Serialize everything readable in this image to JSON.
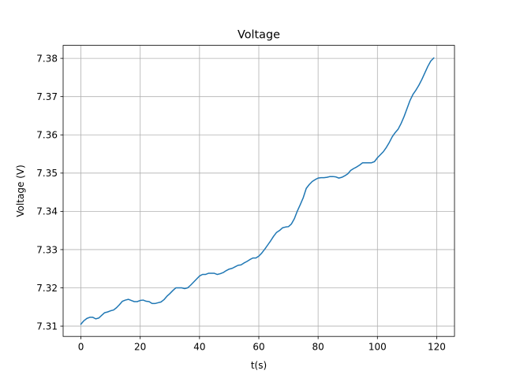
{
  "chart_data": {
    "type": "line",
    "title": "Voltage",
    "xlabel": "t(s)",
    "ylabel": "Voltage (V)",
    "xlim": [
      -6,
      126
    ],
    "ylim": [
      7.3073,
      7.3834
    ],
    "grid": true,
    "xticks": [
      0,
      20,
      40,
      60,
      80,
      100,
      120
    ],
    "yticks": [
      7.31,
      7.32,
      7.33,
      7.34,
      7.35,
      7.36,
      7.37,
      7.38
    ],
    "xtick_labels": [
      "0",
      "20",
      "40",
      "60",
      "80",
      "100",
      "120"
    ],
    "ytick_labels": [
      "7.31",
      "7.32",
      "7.33",
      "7.34",
      "7.35",
      "7.36",
      "7.37",
      "7.38"
    ],
    "series": [
      {
        "color": "#1f77b4",
        "x": [
          0,
          1,
          2,
          3,
          4,
          5,
          6,
          7,
          8,
          9,
          10,
          11,
          12,
          13,
          14,
          15,
          16,
          17,
          18,
          19,
          20,
          21,
          22,
          23,
          24,
          25,
          26,
          27,
          28,
          29,
          30,
          31,
          32,
          33,
          34,
          35,
          36,
          37,
          38,
          39,
          40,
          41,
          42,
          43,
          44,
          45,
          46,
          47,
          48,
          49,
          50,
          51,
          52,
          53,
          54,
          55,
          56,
          57,
          58,
          59,
          60,
          61,
          62,
          63,
          64,
          65,
          66,
          67,
          68,
          69,
          70,
          71,
          72,
          73,
          74,
          75,
          76,
          77,
          78,
          79,
          80,
          81,
          82,
          83,
          84,
          85,
          86,
          87,
          88,
          89,
          90,
          91,
          92,
          93,
          94,
          95,
          96,
          97,
          98,
          99,
          100,
          101,
          102,
          103,
          104,
          105,
          106,
          107,
          108,
          109,
          110,
          111,
          112,
          113,
          114,
          115,
          116,
          117,
          118,
          119
        ],
        "y": [
          7.3105,
          7.3114,
          7.312,
          7.3123,
          7.3123,
          7.3119,
          7.3121,
          7.3128,
          7.3135,
          7.3137,
          7.314,
          7.3142,
          7.3148,
          7.3156,
          7.3165,
          7.3168,
          7.317,
          7.3167,
          7.3164,
          7.3164,
          7.3167,
          7.3168,
          7.3165,
          7.3164,
          7.3159,
          7.3159,
          7.3161,
          7.3163,
          7.3169,
          7.3178,
          7.3185,
          7.3193,
          7.32,
          7.32,
          7.32,
          7.3198,
          7.32,
          7.3207,
          7.3215,
          7.3223,
          7.3231,
          7.3235,
          7.3235,
          7.3238,
          7.3238,
          7.3238,
          7.3235,
          7.3237,
          7.324,
          7.3245,
          7.3249,
          7.3251,
          7.3255,
          7.3259,
          7.326,
          7.3265,
          7.3269,
          7.3274,
          7.3278,
          7.3278,
          7.3283,
          7.3291,
          7.3301,
          7.3312,
          7.3323,
          7.3335,
          7.3345,
          7.335,
          7.3357,
          7.3359,
          7.336,
          7.3367,
          7.3381,
          7.3401,
          7.3418,
          7.3436,
          7.346,
          7.347,
          7.3478,
          7.3483,
          7.3487,
          7.3488,
          7.3488,
          7.3489,
          7.3491,
          7.3491,
          7.349,
          7.3487,
          7.3489,
          7.3493,
          7.3498,
          7.3507,
          7.3512,
          7.3516,
          7.3521,
          7.3527,
          7.3527,
          7.3527,
          7.3527,
          7.353,
          7.354,
          7.3548,
          7.3556,
          7.3567,
          7.358,
          7.3595,
          7.3606,
          7.3615,
          7.363,
          7.3648,
          7.3669,
          7.369,
          7.3706,
          7.3717,
          7.373,
          7.3745,
          7.3762,
          7.3779,
          7.3793,
          7.3801
        ]
      }
    ]
  }
}
